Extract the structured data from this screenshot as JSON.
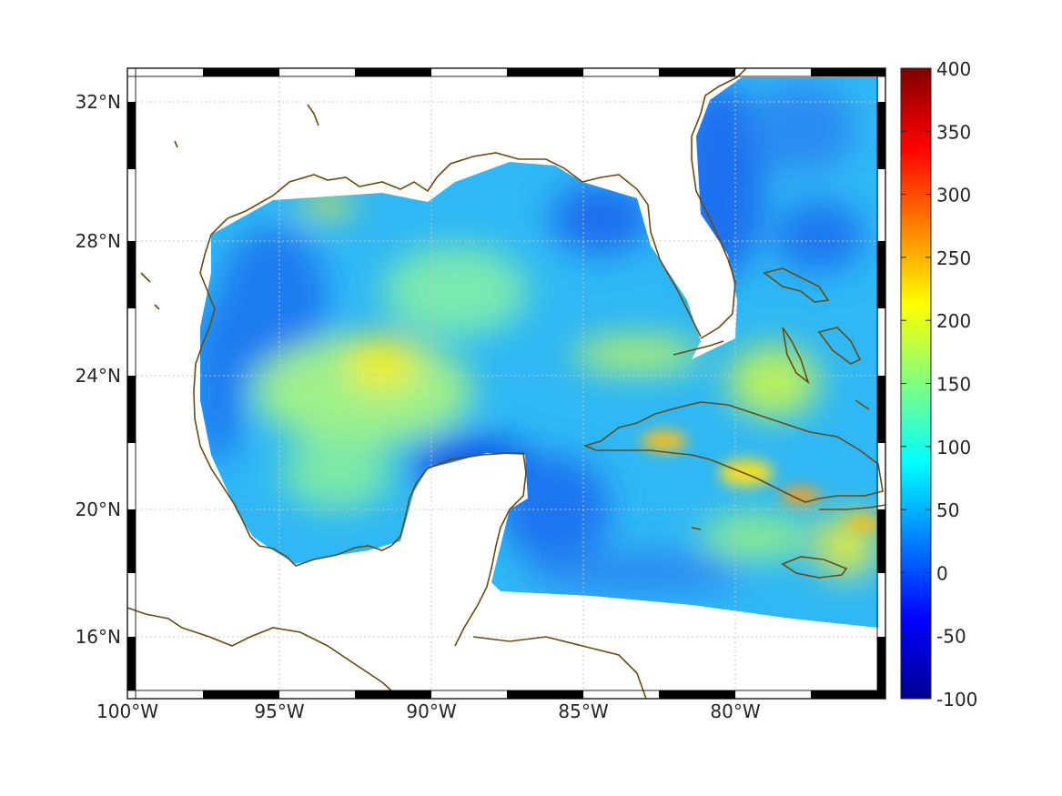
{
  "map": {
    "projection_extent": {
      "lon": [
        -100,
        -75
      ],
      "lat": [
        14.2,
        33
      ]
    },
    "lon_ticks": [
      {
        "value": -100,
        "label": "100°W"
      },
      {
        "value": -95,
        "label": "95°W"
      },
      {
        "value": -90,
        "label": "90°W"
      },
      {
        "value": -85,
        "label": "85°W"
      },
      {
        "value": -80,
        "label": "80°W"
      }
    ],
    "lat_ticks": [
      {
        "value": 32,
        "label": "32°N"
      },
      {
        "value": 28,
        "label": "28°N"
      },
      {
        "value": 24,
        "label": "24°N"
      },
      {
        "value": 20,
        "label": "20°N"
      },
      {
        "value": 16,
        "label": "16°N"
      }
    ],
    "grid": true,
    "coastline_color": "#6b4a10",
    "colormap": "jet"
  },
  "colorbar": {
    "min": -100,
    "max": 400,
    "ticks": [
      400,
      350,
      300,
      250,
      200,
      150,
      100,
      50,
      0,
      -50,
      -100
    ],
    "labels": [
      "400",
      "350",
      "300",
      "250",
      "200",
      "150",
      "100",
      "50",
      "0",
      "-50",
      "-100"
    ]
  }
}
